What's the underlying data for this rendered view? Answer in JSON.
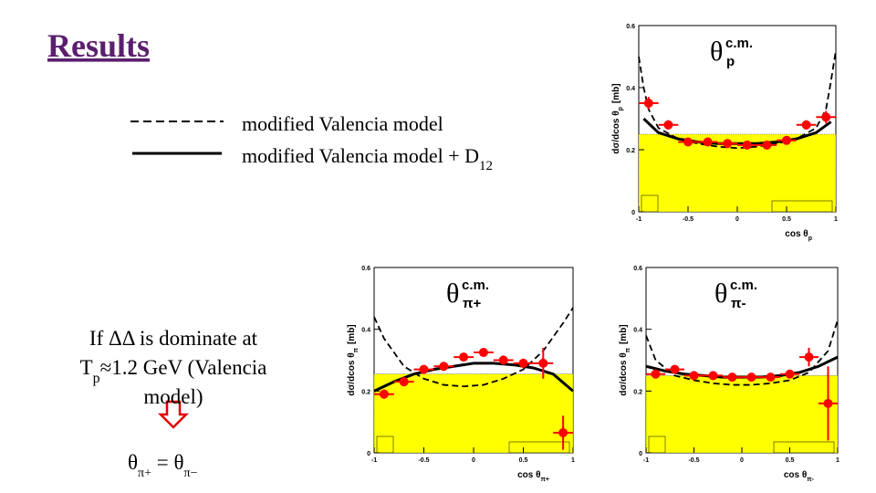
{
  "title": "Results",
  "legend": [
    {
      "style": "dashed",
      "main": "modified Valencia model"
    },
    {
      "style": "solid",
      "main": "modified Valencia model + D",
      "sub": "12"
    }
  ],
  "note": {
    "line1": "If ΔΔ is dominate at",
    "line2": {
      "main": "T",
      "sub": "p",
      "tail": "≈1.2 GeV (Valencia"
    },
    "line3": "model)"
  },
  "equation": {
    "main": "θ",
    "sub": "π+",
    "tail": " = θ",
    "sub2": "π−"
  },
  "chart_data": [
    {
      "type": "scatter",
      "annotation": {
        "main": "θ",
        "sup": "c.m.",
        "sub": "p"
      },
      "xlabel": {
        "main": "cos θ",
        "sub": "p"
      },
      "ylabel": {
        "main": "dσ/dcos θ",
        "sub": "p",
        "tail": "[mb]"
      },
      "xlim": [
        -1,
        1
      ],
      "ylim": [
        0,
        0.6
      ],
      "xticks": [
        -1,
        -0.5,
        0,
        0.5,
        1
      ],
      "yticks": [
        0,
        0.2,
        0.4,
        0.6
      ],
      "band": {
        "color": "#ffff00",
        "x": [
          -1,
          1
        ],
        "values": [
          0.25,
          0.25
        ]
      },
      "curves": [
        {
          "style": "dashed",
          "color": "#000000",
          "x": [
            -1,
            -0.95,
            -0.9,
            -0.8,
            -0.6,
            -0.4,
            -0.2,
            0,
            0.2,
            0.4,
            0.6,
            0.8,
            0.9,
            0.95,
            1
          ],
          "values": [
            0.5,
            0.4,
            0.33,
            0.27,
            0.235,
            0.22,
            0.21,
            0.205,
            0.21,
            0.22,
            0.235,
            0.27,
            0.33,
            0.42,
            0.52
          ]
        },
        {
          "style": "solid",
          "color": "#000000",
          "x": [
            -0.95,
            -0.8,
            -0.6,
            -0.4,
            -0.2,
            0,
            0.2,
            0.4,
            0.6,
            0.8,
            0.95
          ],
          "values": [
            0.3,
            0.255,
            0.235,
            0.225,
            0.22,
            0.22,
            0.22,
            0.225,
            0.235,
            0.255,
            0.29
          ]
        }
      ],
      "points": {
        "color": "#ff0000",
        "x": [
          -0.9,
          -0.7,
          -0.5,
          -0.3,
          -0.1,
          0.1,
          0.3,
          0.5,
          0.7,
          0.9
        ],
        "values": [
          0.35,
          0.28,
          0.225,
          0.225,
          0.22,
          0.215,
          0.215,
          0.23,
          0.28,
          0.305
        ],
        "errors": [
          0.02,
          0.015,
          0.012,
          0.012,
          0.012,
          0.012,
          0.012,
          0.012,
          0.015,
          0.02
        ]
      }
    },
    {
      "type": "scatter",
      "annotation": {
        "main": "θ",
        "sup": "c.m.",
        "sub": "π+"
      },
      "xlabel": {
        "main": "cos θ",
        "sub": "π+"
      },
      "ylabel": {
        "main": "dσ/dcos θ",
        "sub": "π",
        "tail": "[mb]"
      },
      "xlim": [
        -1,
        1
      ],
      "ylim": [
        0,
        0.6
      ],
      "xticks": [
        -1,
        -0.5,
        0,
        0.5,
        1
      ],
      "yticks": [
        0,
        0.2,
        0.4,
        0.6
      ],
      "band": {
        "color": "#ffff00",
        "x": [
          -1,
          1
        ],
        "values": [
          0.255,
          0.255
        ]
      },
      "curves": [
        {
          "style": "dashed",
          "color": "#000000",
          "x": [
            -1,
            -0.9,
            -0.7,
            -0.5,
            -0.3,
            -0.1,
            0.1,
            0.3,
            0.5,
            0.7,
            0.9,
            1
          ],
          "values": [
            0.44,
            0.37,
            0.28,
            0.24,
            0.22,
            0.215,
            0.22,
            0.24,
            0.27,
            0.33,
            0.42,
            0.47
          ]
        },
        {
          "style": "solid",
          "color": "#000000",
          "x": [
            -1,
            -0.8,
            -0.6,
            -0.4,
            -0.2,
            0,
            0.2,
            0.4,
            0.6,
            0.8,
            1
          ],
          "values": [
            0.2,
            0.23,
            0.255,
            0.27,
            0.28,
            0.29,
            0.29,
            0.285,
            0.275,
            0.255,
            0.2
          ]
        }
      ],
      "points": {
        "color": "#ff0000",
        "x": [
          -0.9,
          -0.7,
          -0.5,
          -0.3,
          -0.1,
          0.1,
          0.3,
          0.5,
          0.7,
          0.9
        ],
        "values": [
          0.19,
          0.23,
          0.27,
          0.28,
          0.31,
          0.325,
          0.3,
          0.29,
          0.29,
          0.065
        ],
        "errors": [
          0.015,
          0.012,
          0.012,
          0.012,
          0.012,
          0.012,
          0.015,
          0.015,
          0.05,
          0.055
        ]
      }
    },
    {
      "type": "scatter",
      "annotation": {
        "main": "θ",
        "sup": "c.m.",
        "sub": "π-"
      },
      "xlabel": {
        "main": "cos θ",
        "sub": "π-"
      },
      "ylabel": {
        "main": "dσ/dcos θ",
        "sub": "π",
        "tail": "[mb]"
      },
      "xlim": [
        -1,
        1
      ],
      "ylim": [
        0,
        0.6
      ],
      "xticks": [
        -1,
        -0.5,
        0,
        0.5,
        1
      ],
      "yticks": [
        0,
        0.2,
        0.4,
        0.6
      ],
      "band": {
        "color": "#ffff00",
        "x": [
          -1,
          1
        ],
        "values": [
          0.25,
          0.25
        ]
      },
      "curves": [
        {
          "style": "dashed",
          "color": "#000000",
          "x": [
            -1,
            -0.9,
            -0.7,
            -0.5,
            -0.3,
            -0.1,
            0.1,
            0.3,
            0.5,
            0.7,
            0.9,
            1
          ],
          "values": [
            0.38,
            0.3,
            0.25,
            0.235,
            0.225,
            0.22,
            0.22,
            0.225,
            0.235,
            0.26,
            0.33,
            0.43
          ]
        },
        {
          "style": "solid",
          "color": "#000000",
          "x": [
            -1,
            -0.8,
            -0.6,
            -0.4,
            -0.2,
            0,
            0.2,
            0.4,
            0.6,
            0.8,
            1
          ],
          "values": [
            0.28,
            0.265,
            0.255,
            0.25,
            0.245,
            0.245,
            0.245,
            0.25,
            0.26,
            0.28,
            0.31
          ]
        }
      ],
      "points": {
        "color": "#ff0000",
        "x": [
          -0.9,
          -0.7,
          -0.5,
          -0.3,
          -0.1,
          0.1,
          0.3,
          0.5,
          0.7,
          0.9
        ],
        "values": [
          0.255,
          0.27,
          0.25,
          0.25,
          0.245,
          0.245,
          0.245,
          0.255,
          0.31,
          0.16
        ],
        "errors": [
          0.012,
          0.012,
          0.012,
          0.012,
          0.012,
          0.012,
          0.012,
          0.012,
          0.03,
          0.12
        ]
      }
    }
  ]
}
